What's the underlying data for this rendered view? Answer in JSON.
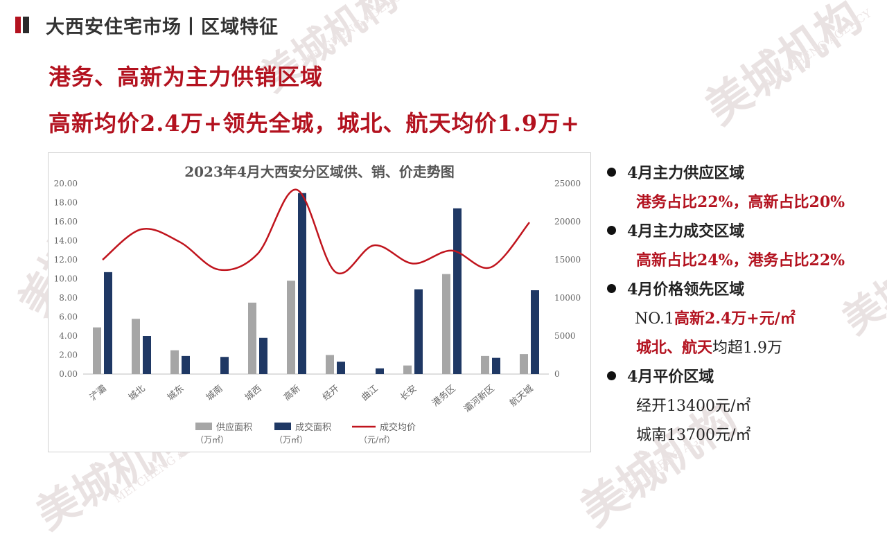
{
  "header": {
    "title": "大西安住宅市场丨区域特征"
  },
  "headline": {
    "line1": "港务、高新为主力供销区域",
    "line2": "高新均价2.4万+领先全城，城北、航天均价1.9万+"
  },
  "watermark": {
    "text": "美城机构",
    "english": "MEI CHENG AGENCY"
  },
  "colors": {
    "accent": "#b3121f",
    "supply_bar": "#a6a6a6",
    "deal_bar": "#1f3864",
    "price_line": "#c0141d"
  },
  "chart_data": {
    "type": "bar",
    "title": "2023年4月大西安分区域供、销、价走势图",
    "categories": [
      "浐灞",
      "城北",
      "城东",
      "城南",
      "城西",
      "高新",
      "经开",
      "曲江",
      "长安",
      "港务区",
      "灞河新区",
      "航天城"
    ],
    "series": [
      {
        "name": "供应面积",
        "unit": "（万㎡）",
        "axis": "left",
        "kind": "bar",
        "values": [
          4.9,
          5.8,
          2.5,
          0,
          7.5,
          9.8,
          2.0,
          0,
          0.9,
          10.5,
          1.9,
          2.1
        ]
      },
      {
        "name": "成交面积",
        "unit": "（万㎡）",
        "axis": "left",
        "kind": "bar",
        "values": [
          10.7,
          4.0,
          1.9,
          1.8,
          3.8,
          19.0,
          1.3,
          0.6,
          8.9,
          17.4,
          1.7,
          8.8
        ]
      },
      {
        "name": "成交均价",
        "unit": "（元/㎡）",
        "axis": "right",
        "kind": "line",
        "values": [
          15000,
          19000,
          17300,
          13700,
          15800,
          24200,
          13400,
          16900,
          14500,
          16200,
          14000,
          19900
        ]
      }
    ],
    "ylim_left": [
      0,
      20
    ],
    "ylim_right": [
      0,
      25000
    ],
    "left_ticks": [
      "0.00",
      "2.00",
      "4.00",
      "6.00",
      "8.00",
      "10.00",
      "12.00",
      "14.00",
      "16.00",
      "18.00",
      "20.00"
    ],
    "right_ticks": [
      "0",
      "5000",
      "10000",
      "15000",
      "20000",
      "25000"
    ],
    "grid": false,
    "legend": "bottom"
  },
  "panel": {
    "items": [
      {
        "heading": "4月主力供应区域",
        "lines": [
          [
            {
              "t": "港务占比22%，高新占比20%",
              "c": "red"
            }
          ]
        ]
      },
      {
        "heading": "4月主力成交区域",
        "lines": [
          [
            {
              "t": "高新占比24%，港务占比22%",
              "c": "red"
            }
          ]
        ]
      },
      {
        "heading": "4月价格领先区域",
        "lines": [
          [
            {
              "t": "NO.1",
              "c": "blk"
            },
            {
              "t": "高新2.4万+元/㎡",
              "c": "red"
            }
          ],
          [
            {
              "t": "城北、航天",
              "c": "red"
            },
            {
              "t": "均超1.9万",
              "c": "blk"
            }
          ]
        ]
      },
      {
        "heading": "4月平价区域",
        "lines": [
          [
            {
              "t": "经开13400元/㎡",
              "c": "blk"
            }
          ],
          [
            {
              "t": "城南13700元/㎡",
              "c": "blk"
            }
          ]
        ]
      }
    ]
  }
}
